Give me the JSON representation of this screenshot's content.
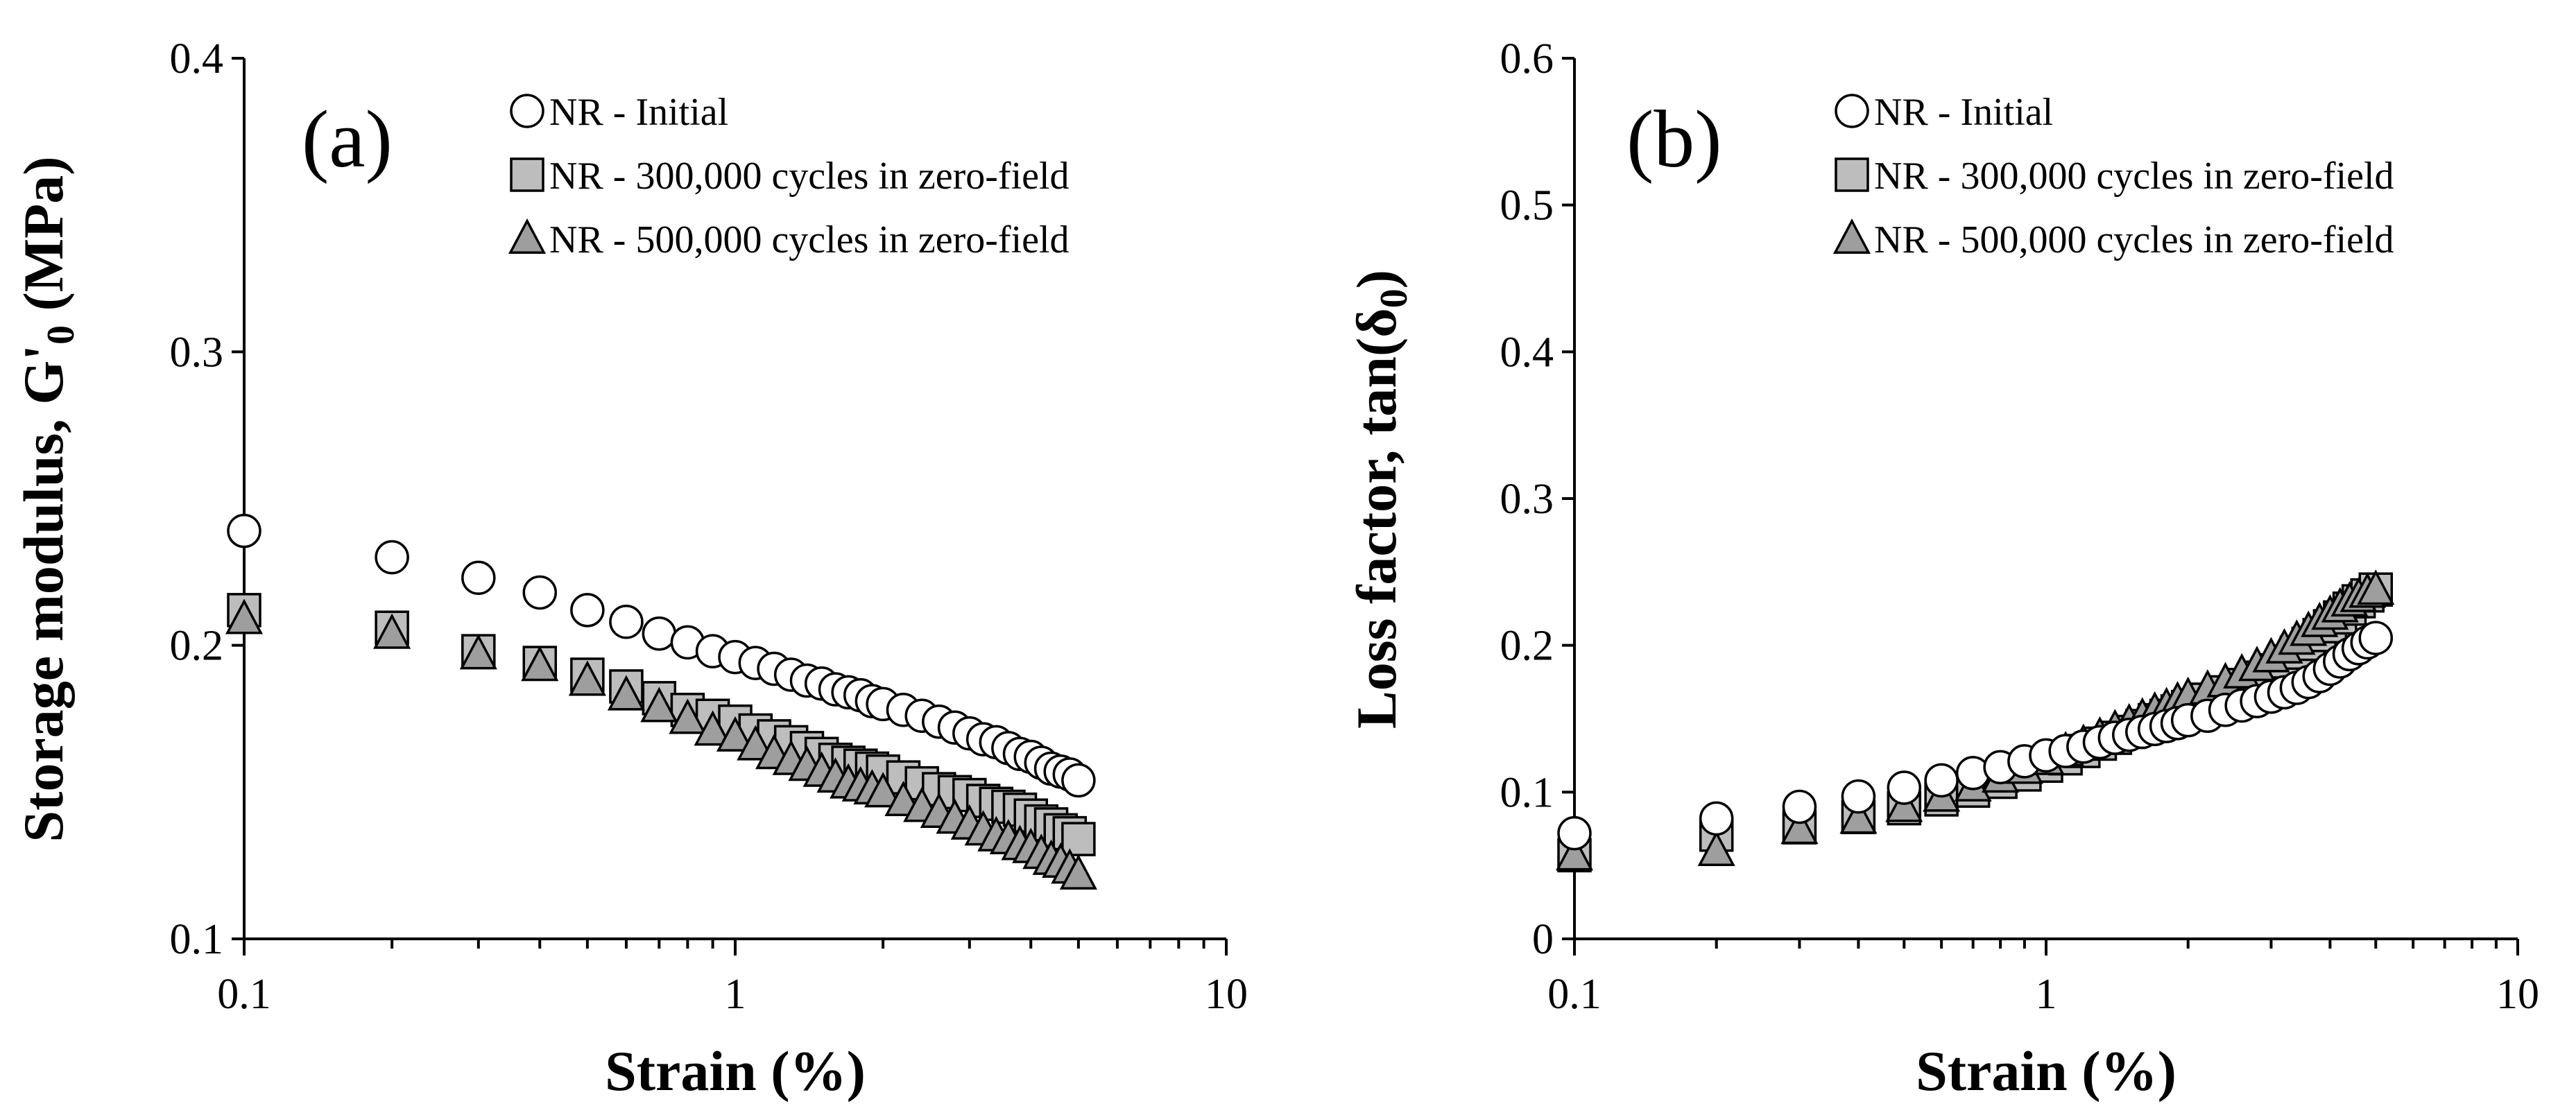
{
  "chart_data": [
    {
      "type": "scatter",
      "panel_label": "(a)",
      "xlabel": "Strain (%)",
      "ylabel_text": "Storage modulus,  G'",
      "ylabel_sub": "0",
      "ylabel_units": " (MPa)",
      "x_scale": "log",
      "xlim": [
        0.1,
        10
      ],
      "ylim": [
        0.1,
        0.4
      ],
      "x_ticks": [
        "0.1",
        "1",
        "10"
      ],
      "y_ticks": [
        "0.1",
        "0.2",
        "0.3",
        "0.4"
      ],
      "legend_position": "top-right",
      "x": [
        0.1,
        0.2,
        0.3,
        0.4,
        0.5,
        0.6,
        0.7,
        0.8,
        0.9,
        1.0,
        1.1,
        1.2,
        1.3,
        1.4,
        1.5,
        1.6,
        1.7,
        1.8,
        1.9,
        2.0,
        2.2,
        2.4,
        2.6,
        2.8,
        3.0,
        3.2,
        3.4,
        3.6,
        3.8,
        4.0,
        4.2,
        4.4,
        4.6,
        4.8,
        5.0
      ],
      "series": [
        {
          "name": "NR - Initial",
          "marker": "circle",
          "values": [
            0.239,
            0.23,
            0.223,
            0.218,
            0.212,
            0.208,
            0.204,
            0.201,
            0.198,
            0.196,
            0.194,
            0.192,
            0.19,
            0.188,
            0.187,
            0.185,
            0.184,
            0.183,
            0.181,
            0.18,
            0.178,
            0.176,
            0.174,
            0.172,
            0.17,
            0.168,
            0.167,
            0.165,
            0.163,
            0.162,
            0.16,
            0.158,
            0.157,
            0.156,
            0.154
          ]
        },
        {
          "name": "NR - 300,000 cycles in zero-field",
          "marker": "square",
          "values": [
            0.212,
            0.206,
            0.198,
            0.194,
            0.19,
            0.186,
            0.182,
            0.178,
            0.176,
            0.174,
            0.171,
            0.169,
            0.167,
            0.165,
            0.163,
            0.161,
            0.16,
            0.159,
            0.158,
            0.157,
            0.155,
            0.153,
            0.151,
            0.15,
            0.149,
            0.147,
            0.146,
            0.145,
            0.144,
            0.142,
            0.14,
            0.139,
            0.137,
            0.136,
            0.134
          ]
        },
        {
          "name": "NR - 500,000 cycles in zero-field",
          "marker": "triangle",
          "values": [
            0.209,
            0.204,
            0.197,
            0.193,
            0.188,
            0.183,
            0.179,
            0.175,
            0.171,
            0.169,
            0.166,
            0.163,
            0.161,
            0.159,
            0.157,
            0.155,
            0.153,
            0.152,
            0.151,
            0.15,
            0.147,
            0.145,
            0.143,
            0.141,
            0.139,
            0.137,
            0.135,
            0.134,
            0.132,
            0.131,
            0.129,
            0.127,
            0.126,
            0.124,
            0.122
          ]
        }
      ]
    },
    {
      "type": "scatter",
      "panel_label": "(b)",
      "xlabel": "Strain (%)",
      "ylabel_text": "Loss factor, tan(δ",
      "ylabel_sub": "0",
      "ylabel_units": ")",
      "x_scale": "log",
      "xlim": [
        0.1,
        10
      ],
      "ylim": [
        0,
        0.6
      ],
      "x_ticks": [
        "0.1",
        "1",
        "10"
      ],
      "y_ticks": [
        "0",
        "0.1",
        "0.2",
        "0.3",
        "0.4",
        "0.5",
        "0.6"
      ],
      "legend_position": "top-right",
      "x": [
        0.1,
        0.2,
        0.3,
        0.4,
        0.5,
        0.6,
        0.7,
        0.8,
        0.9,
        1.0,
        1.1,
        1.2,
        1.3,
        1.4,
        1.5,
        1.6,
        1.7,
        1.8,
        1.9,
        2.0,
        2.2,
        2.4,
        2.6,
        2.8,
        3.0,
        3.2,
        3.4,
        3.6,
        3.8,
        4.0,
        4.2,
        4.4,
        4.6,
        4.8,
        5.0
      ],
      "series": [
        {
          "name": "NR - Initial",
          "marker": "circle",
          "values": [
            0.072,
            0.082,
            0.09,
            0.097,
            0.103,
            0.108,
            0.113,
            0.117,
            0.121,
            0.125,
            0.128,
            0.131,
            0.134,
            0.137,
            0.139,
            0.141,
            0.143,
            0.145,
            0.147,
            0.149,
            0.152,
            0.156,
            0.159,
            0.162,
            0.165,
            0.168,
            0.171,
            0.175,
            0.179,
            0.184,
            0.189,
            0.194,
            0.198,
            0.202,
            0.205
          ]
        },
        {
          "name": "NR - 300,000 cycles in zero-field",
          "marker": "square",
          "values": [
            0.057,
            0.071,
            0.076,
            0.083,
            0.089,
            0.095,
            0.101,
            0.107,
            0.112,
            0.118,
            0.123,
            0.128,
            0.133,
            0.137,
            0.141,
            0.145,
            0.149,
            0.152,
            0.155,
            0.158,
            0.163,
            0.168,
            0.173,
            0.178,
            0.183,
            0.189,
            0.195,
            0.201,
            0.207,
            0.213,
            0.219,
            0.225,
            0.23,
            0.234,
            0.238
          ]
        },
        {
          "name": "NR - 500,000 cycles in zero-field",
          "marker": "triangle",
          "values": [
            0.057,
            0.06,
            0.075,
            0.082,
            0.09,
            0.097,
            0.104,
            0.11,
            0.116,
            0.122,
            0.128,
            0.133,
            0.138,
            0.143,
            0.147,
            0.151,
            0.155,
            0.158,
            0.162,
            0.165,
            0.17,
            0.175,
            0.181,
            0.186,
            0.192,
            0.198,
            0.204,
            0.21,
            0.216,
            0.221,
            0.226,
            0.23,
            0.233,
            0.236,
            0.238
          ]
        }
      ]
    }
  ]
}
